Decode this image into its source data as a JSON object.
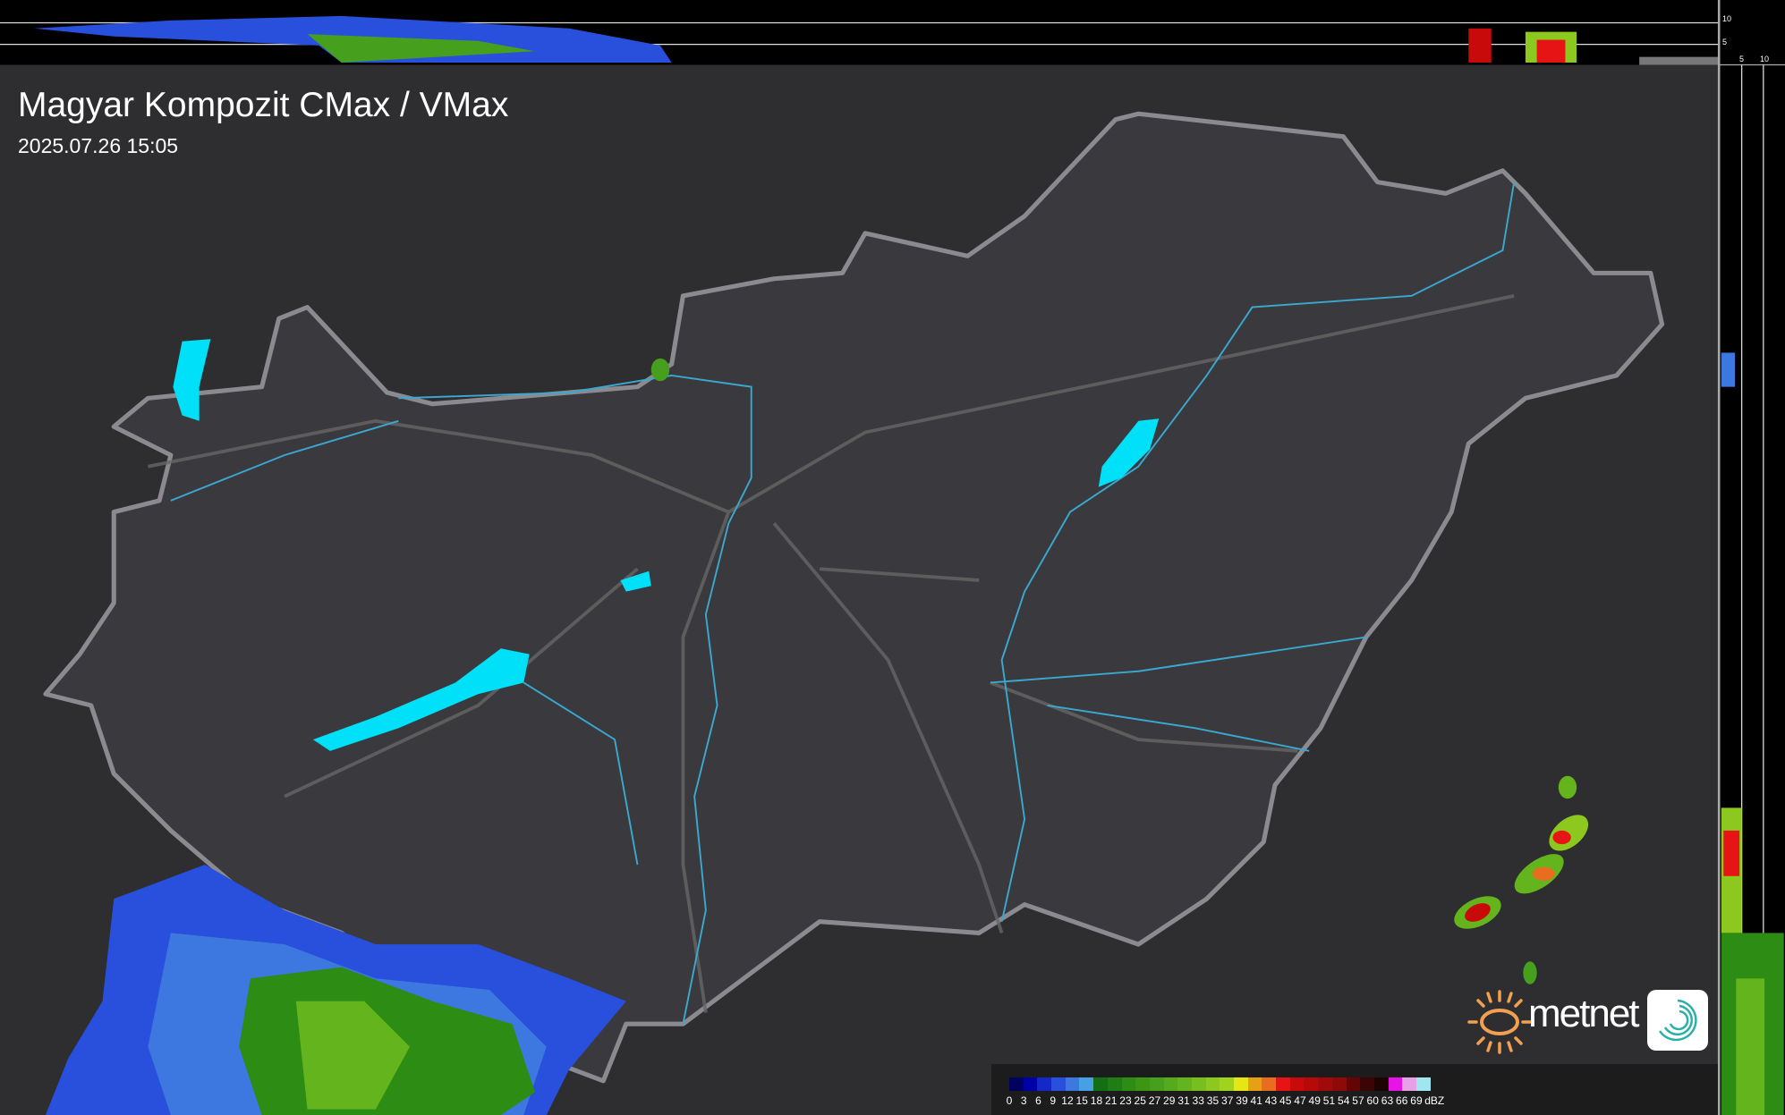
{
  "header": {
    "title": "Magyar Kompozit CMax / VMax",
    "timestamp": "2025.07.26 15:05"
  },
  "profile_axes": {
    "top_ticks": [
      "10",
      "5"
    ],
    "right_ticks": [
      "5",
      "10"
    ]
  },
  "legend": {
    "unit": "dBZ",
    "labels": [
      "0",
      "3",
      "6",
      "9",
      "12",
      "15",
      "18",
      "21",
      "23",
      "25",
      "27",
      "29",
      "31",
      "33",
      "35",
      "37",
      "39",
      "41",
      "43",
      "45",
      "47",
      "49",
      "51",
      "54",
      "57",
      "60",
      "63",
      "66",
      "69"
    ],
    "colors": [
      "#00005e",
      "#0000a8",
      "#1428c8",
      "#2850dc",
      "#3c78e0",
      "#46a0e6",
      "#146e14",
      "#1e7d14",
      "#2d8c14",
      "#3c9614",
      "#46a01e",
      "#55aa1e",
      "#64b41e",
      "#78be1e",
      "#8cc81e",
      "#a0d21e",
      "#e6e614",
      "#e6a014",
      "#e66e1e",
      "#e61414",
      "#c80a0a",
      "#b40a0a",
      "#a00a0a",
      "#8c0a0a",
      "#640505",
      "#3c0505",
      "#1e0303",
      "#e614e6",
      "#e6a0e6",
      "#a0e6f0"
    ]
  },
  "logo": {
    "text": "metnet",
    "sun_color": "#f0a050",
    "swirl_color": "#2ab0a8"
  },
  "colors": {
    "background": "#2e2e30",
    "country_fill": "#3a3a3e",
    "border": "#8a8a90",
    "rivers": "#3aa8d0",
    "lakes": "#00e0f8"
  }
}
